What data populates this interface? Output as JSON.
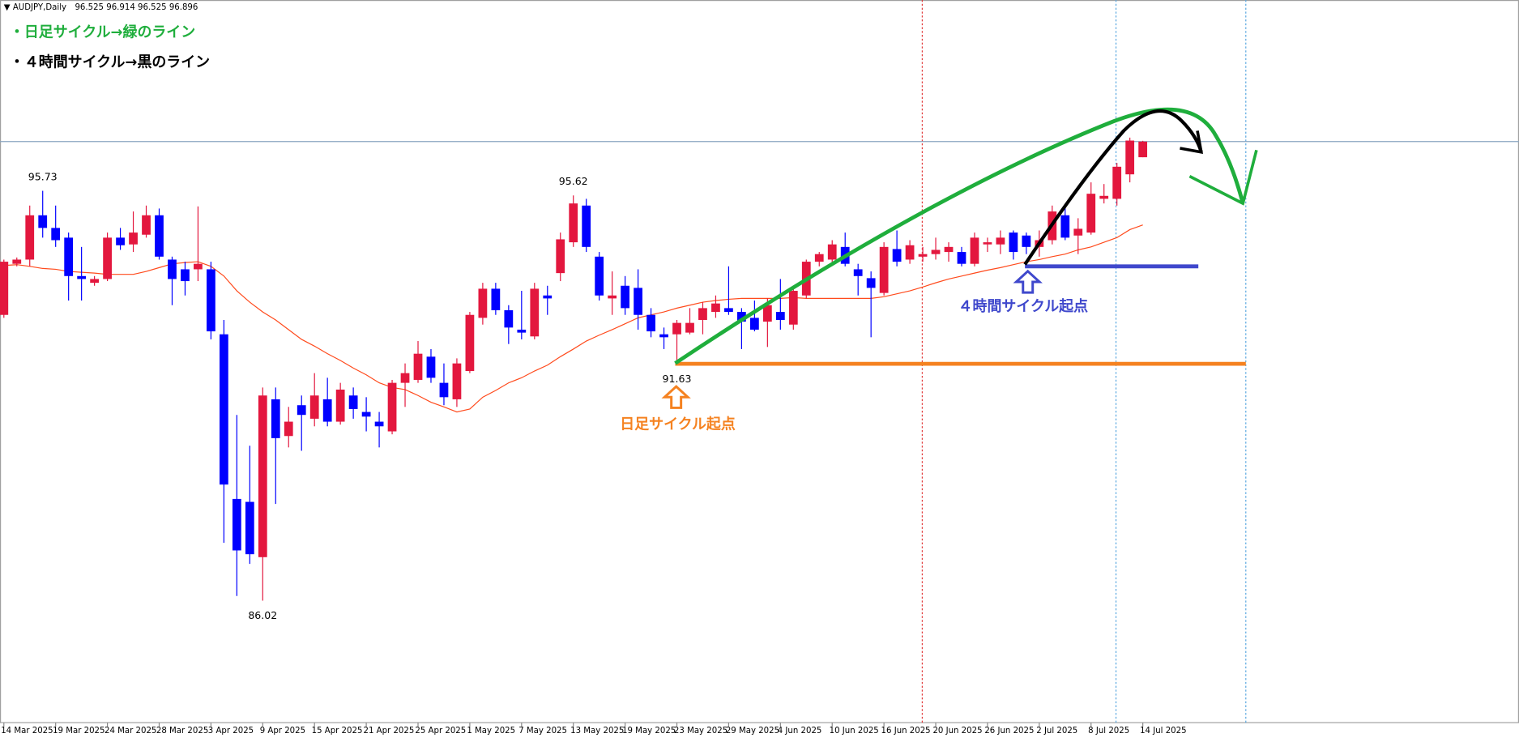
{
  "chart_data": {
    "type": "candlestick",
    "header": "AUDJPY,Daily",
    "categories": [
      "14 Mar 2025",
      null,
      null,
      null,
      "19 Mar 2025",
      null,
      null,
      null,
      "24 Mar 2025",
      null,
      null,
      null,
      "28 Mar 2025",
      null,
      null,
      null,
      "3 Apr 2025",
      null,
      null,
      null,
      "9 Apr 2025",
      null,
      null,
      null,
      "15 Apr 2025",
      null,
      null,
      null,
      "21 Apr 2025",
      null,
      null,
      null,
      "25 Apr 2025",
      null,
      null,
      null,
      "1 May 2025",
      null,
      null,
      null,
      "7 May 2025",
      null,
      null,
      null,
      "13 May 2025",
      null,
      null,
      null,
      "19 May 2025",
      null,
      null,
      null,
      "23 May 2025",
      null,
      null,
      null,
      "29 May 2025",
      null,
      null,
      null,
      "4 Jun 2025",
      null,
      null,
      null,
      "10 Jun 2025",
      null,
      null,
      null,
      "16 Jun 2025",
      null,
      null,
      null,
      "20 Jun 2025",
      null,
      null,
      null,
      "26 Jun 2025",
      null,
      null,
      null,
      "2 Jul 2025",
      null,
      null,
      null,
      "8 Jul 2025",
      null,
      null,
      null,
      "14 Jul 2025"
    ],
    "open": [
      92.79,
      94.0,
      94.1,
      95.15,
      94.85,
      94.62,
      93.71,
      93.55,
      93.64,
      94.62,
      94.46,
      94.69,
      95.15,
      94.1,
      93.87,
      93.87,
      93.87,
      92.33,
      88.43,
      88.36,
      87.05,
      90.79,
      89.92,
      90.65,
      90.33,
      90.79,
      90.26,
      90.88,
      90.49,
      90.26,
      90.03,
      91.18,
      91.25,
      91.8,
      91.18,
      90.79,
      91.46,
      92.72,
      93.41,
      92.9,
      92.44,
      92.28,
      93.25,
      93.78,
      94.51,
      95.38,
      94.17,
      93.18,
      93.48,
      93.43,
      92.79,
      92.33,
      92.33,
      92.37,
      92.67,
      92.86,
      92.95,
      92.86,
      92.72,
      92.63,
      92.86,
      92.56,
      93.25,
      94.05,
      94.1,
      94.4,
      93.87,
      93.66,
      93.31,
      94.35,
      94.1,
      94.17,
      94.23,
      94.28,
      94.28,
      94.0,
      94.46,
      94.46,
      94.74,
      94.67,
      94.4,
      94.56,
      95.15,
      94.67,
      94.74,
      95.54,
      95.54,
      96.12,
      96.525
    ],
    "high": [
      94.1,
      94.15,
      95.38,
      95.73,
      95.38,
      94.74,
      94.4,
      93.71,
      94.74,
      94.85,
      95.24,
      95.38,
      95.31,
      94.17,
      94.05,
      95.36,
      94.05,
      92.67,
      90.42,
      89.69,
      91.07,
      91.07,
      90.61,
      90.88,
      91.41,
      91.3,
      91.18,
      91.07,
      90.84,
      90.49,
      91.25,
      91.64,
      92.17,
      91.98,
      91.64,
      91.76,
      92.86,
      93.55,
      93.55,
      93.02,
      93.36,
      93.55,
      93.48,
      94.74,
      95.62,
      95.54,
      94.28,
      93.82,
      93.71,
      93.87,
      92.95,
      92.49,
      92.67,
      92.95,
      93.09,
      93.25,
      93.94,
      92.95,
      93.13,
      93.18,
      93.64,
      93.41,
      94.1,
      94.28,
      94.56,
      94.74,
      94.0,
      93.82,
      94.51,
      94.79,
      94.56,
      94.4,
      94.62,
      94.51,
      94.4,
      94.74,
      94.62,
      94.79,
      94.79,
      94.74,
      94.79,
      95.38,
      95.38,
      95.08,
      95.93,
      95.89,
      96.39,
      96.99,
      96.914
    ],
    "low": [
      92.72,
      93.94,
      93.94,
      94.62,
      94.4,
      93.13,
      93.13,
      93.48,
      93.59,
      94.33,
      94.28,
      94.62,
      94.1,
      93.02,
      93.25,
      93.59,
      92.21,
      87.39,
      86.13,
      86.89,
      86.02,
      88.31,
      89.65,
      89.57,
      90.15,
      90.15,
      90.19,
      90.33,
      90.03,
      89.65,
      89.96,
      90.61,
      91.18,
      91.18,
      90.65,
      90.61,
      91.41,
      92.56,
      92.79,
      92.1,
      92.21,
      92.21,
      92.79,
      93.59,
      94.4,
      94.28,
      93.13,
      92.79,
      92.79,
      92.44,
      92.26,
      91.98,
      91.63,
      92.33,
      92.33,
      92.72,
      92.79,
      91.98,
      92.4,
      92.03,
      92.44,
      92.44,
      93.18,
      93.94,
      94.0,
      93.94,
      93.25,
      92.26,
      93.25,
      93.94,
      94.0,
      94.05,
      94.1,
      94.05,
      93.94,
      93.94,
      94.28,
      94.23,
      94.1,
      94.23,
      94.17,
      94.46,
      94.56,
      94.23,
      94.69,
      95.43,
      95.38,
      95.93,
      96.525
    ],
    "close": [
      94.05,
      94.1,
      95.15,
      94.85,
      94.56,
      93.71,
      93.64,
      93.64,
      94.62,
      94.44,
      94.74,
      95.15,
      94.17,
      93.64,
      93.59,
      94.0,
      92.4,
      88.77,
      87.21,
      87.12,
      90.88,
      89.87,
      90.26,
      90.42,
      90.88,
      90.26,
      91.02,
      90.56,
      90.38,
      90.15,
      91.18,
      91.41,
      91.87,
      91.3,
      90.84,
      91.64,
      92.79,
      93.41,
      92.9,
      92.49,
      92.37,
      93.41,
      93.18,
      94.58,
      95.43,
      94.4,
      93.25,
      93.25,
      92.95,
      92.79,
      92.4,
      92.26,
      92.6,
      92.6,
      92.95,
      93.06,
      92.86,
      92.63,
      92.44,
      93.02,
      92.67,
      93.36,
      94.05,
      94.23,
      94.46,
      94.0,
      93.71,
      93.43,
      94.4,
      94.05,
      94.44,
      94.23,
      94.33,
      94.4,
      94.0,
      94.62,
      94.51,
      94.62,
      94.28,
      94.4,
      94.56,
      95.24,
      94.62,
      94.83,
      95.66,
      95.61,
      96.3,
      96.92,
      96.896
    ],
    "up_color": "#e3173e",
    "down_color": "#0000ff",
    "ma": {
      "color": "#ff4a1c",
      "values": [
        93.96,
        93.98,
        93.94,
        93.89,
        93.87,
        93.82,
        93.8,
        93.78,
        93.75,
        93.75,
        93.75,
        93.82,
        93.91,
        94.0,
        94.03,
        94.05,
        93.94,
        93.71,
        93.36,
        93.09,
        92.86,
        92.67,
        92.44,
        92.21,
        92.05,
        91.87,
        91.71,
        91.53,
        91.37,
        91.18,
        91.07,
        91.02,
        90.88,
        90.72,
        90.61,
        90.49,
        90.56,
        90.84,
        91.0,
        91.18,
        91.3,
        91.46,
        91.6,
        91.8,
        91.98,
        92.17,
        92.31,
        92.44,
        92.58,
        92.72,
        92.79,
        92.86,
        92.95,
        93.02,
        93.09,
        93.13,
        93.16,
        93.18,
        93.18,
        93.18,
        93.18,
        93.2,
        93.18,
        93.18,
        93.18,
        93.18,
        93.18,
        93.18,
        93.22,
        93.29,
        93.36,
        93.45,
        93.55,
        93.64,
        93.71,
        93.78,
        93.85,
        93.91,
        93.98,
        94.05,
        94.1,
        94.17,
        94.23,
        94.33,
        94.4,
        94.51,
        94.62,
        94.81,
        94.92
      ]
    },
    "ylim": [
      83.13,
      100.25
    ],
    "price_labels": [
      "95.73",
      "95.62",
      "86.02",
      "91.63"
    ],
    "levels": [
      {
        "value": 91.63,
        "color": "#f58220"
      },
      {
        "value": 93.94,
        "color": "#3f48cc"
      }
    ],
    "annotations": {
      "legend_daily": "・日足サイクル→緑のライン",
      "legend_4h": "・４時間サイクル→黒のライン",
      "start_4h": "４時間サイクル起点",
      "start_daily": "日足サイクル起点"
    }
  }
}
